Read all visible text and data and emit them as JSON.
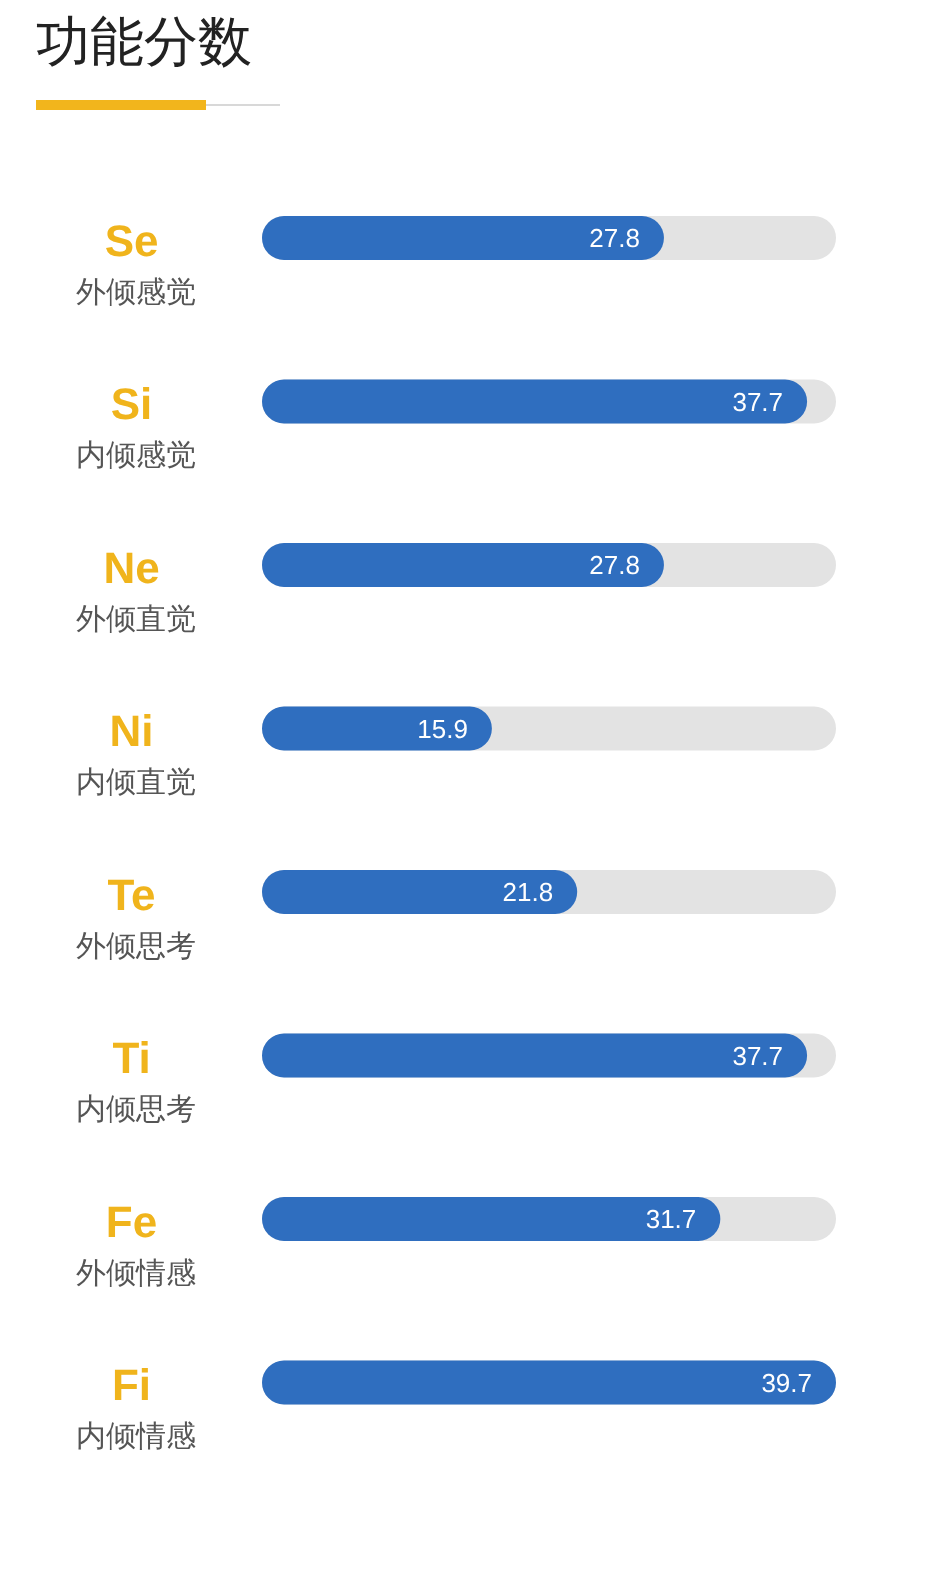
{
  "chart_data": {
    "type": "bar",
    "orientation": "horizontal",
    "title": "功能分数",
    "categories": [
      "Se\n外倾感觉",
      "Si\n内倾感觉",
      "Ne\n外倾直觉",
      "Ni\n内倾直觉",
      "Te\n外倾思考",
      "Ti\n内倾思考",
      "Fe\n外倾情感",
      "Fi\n内倾情感"
    ],
    "values": [
      27.8,
      37.7,
      27.8,
      15.9,
      21.8,
      37.7,
      31.7,
      39.7
    ],
    "color": "#2f6ebf",
    "data_labels": true,
    "tick_labels": "y"
  }
}
